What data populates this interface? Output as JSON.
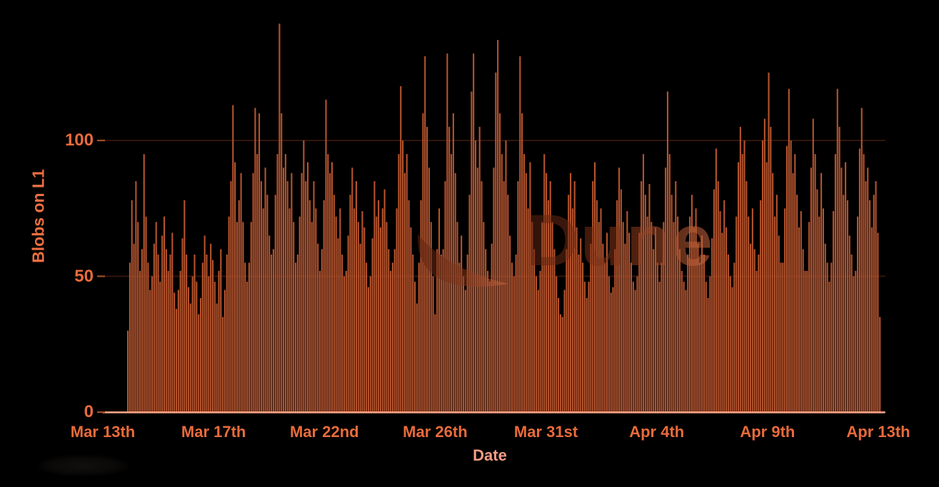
{
  "page": {
    "background": "#000000"
  },
  "watermark": {
    "text": "Dune",
    "logo": "dune-swoosh-logo"
  },
  "chart_data": {
    "type": "bar",
    "title": "",
    "xlabel": "Date",
    "ylabel": "Blobs on L1",
    "x_tick_labels": [
      "Mar 13th",
      "Mar 17th",
      "Mar 22nd",
      "Mar 26th",
      "Mar 31st",
      "Apr 4th",
      "Apr 9th",
      "Apr 13th"
    ],
    "y_ticks": [
      0,
      50,
      100
    ],
    "y_tick_labels": [
      "0",
      "50",
      "100"
    ],
    "ylim": [
      0,
      145
    ],
    "x_range_note": "Mar 13 to Apr 13, sub-daily (approx. 2-hour) buckets",
    "grid": "horizontal gridlines at y ticks",
    "legend_position": "none",
    "values": [
      30,
      55,
      78,
      62,
      85,
      70,
      52,
      60,
      95,
      72,
      55,
      45,
      50,
      62,
      70,
      58,
      48,
      65,
      72,
      60,
      52,
      58,
      66,
      44,
      38,
      45,
      52,
      64,
      78,
      58,
      46,
      40,
      50,
      58,
      48,
      36,
      42,
      55,
      65,
      58,
      50,
      62,
      56,
      48,
      40,
      52,
      60,
      35,
      45,
      58,
      72,
      85,
      113,
      92,
      70,
      78,
      88,
      70,
      55,
      48,
      55,
      70,
      88,
      112,
      95,
      110,
      85,
      75,
      90,
      80,
      65,
      58,
      60,
      80,
      95,
      143,
      110,
      90,
      95,
      85,
      75,
      88,
      70,
      55,
      58,
      72,
      88,
      100,
      85,
      92,
      78,
      70,
      85,
      75,
      62,
      52,
      60,
      78,
      115,
      95,
      88,
      92,
      80,
      72,
      64,
      75,
      58,
      50,
      52,
      65,
      80,
      90,
      75,
      85,
      70,
      62,
      74,
      68,
      55,
      46,
      50,
      64,
      85,
      72,
      78,
      68,
      75,
      82,
      70,
      60,
      52,
      55,
      60,
      75,
      95,
      120,
      100,
      88,
      95,
      78,
      68,
      58,
      48,
      40,
      55,
      78,
      110,
      131,
      105,
      90,
      70,
      50,
      36,
      60,
      75,
      58,
      60,
      85,
      132,
      105,
      95,
      110,
      88,
      70,
      55,
      65,
      50,
      45,
      58,
      80,
      118,
      132,
      100,
      90,
      105,
      85,
      70,
      60,
      52,
      48,
      62,
      90,
      125,
      137,
      110,
      95,
      85,
      100,
      80,
      65,
      55,
      50,
      58,
      85,
      131,
      110,
      95,
      88,
      75,
      92,
      70,
      60,
      50,
      45,
      52,
      70,
      95,
      88,
      78,
      85,
      70,
      60,
      50,
      42,
      36,
      35,
      45,
      60,
      80,
      88,
      75,
      85,
      68,
      58,
      64,
      55,
      48,
      42,
      48,
      62,
      85,
      92,
      78,
      70,
      75,
      62,
      55,
      66,
      50,
      44,
      46,
      60,
      78,
      90,
      82,
      70,
      62,
      74,
      66,
      55,
      48,
      45,
      50,
      66,
      85,
      95,
      80,
      72,
      84,
      70,
      60,
      68,
      55,
      48,
      55,
      70,
      90,
      118,
      95,
      80,
      70,
      85,
      72,
      60,
      52,
      48,
      45,
      58,
      72,
      80,
      68,
      75,
      62,
      55,
      65,
      58,
      48,
      42,
      50,
      64,
      82,
      97,
      85,
      74,
      66,
      78,
      68,
      58,
      50,
      46,
      55,
      72,
      92,
      105,
      95,
      100,
      85,
      72,
      62,
      75,
      60,
      52,
      58,
      78,
      100,
      108,
      92,
      125,
      105,
      88,
      72,
      80,
      65,
      55,
      55,
      75,
      98,
      119,
      100,
      88,
      95,
      80,
      68,
      74,
      60,
      52,
      52,
      70,
      90,
      108,
      95,
      82,
      72,
      88,
      75,
      62,
      55,
      48,
      55,
      74,
      95,
      119,
      105,
      90,
      80,
      92,
      78,
      65,
      58,
      50,
      52,
      72,
      97,
      112,
      95,
      85,
      90,
      78,
      68,
      80,
      85,
      66,
      35
    ],
    "colors": {
      "background": "#000000",
      "bar": "#b5542e",
      "axis_line": "#f7a284",
      "tick_text": "#e96b3b",
      "tick_dash": "#a34c2a",
      "xlabel_text": "#f49d82",
      "ylabel_text": "#ed6f41",
      "gridline": "#33150b",
      "watermark_dark": "#5a2110",
      "watermark_mid": "#8a3a1c",
      "watermark_light": "#d06b42"
    }
  }
}
